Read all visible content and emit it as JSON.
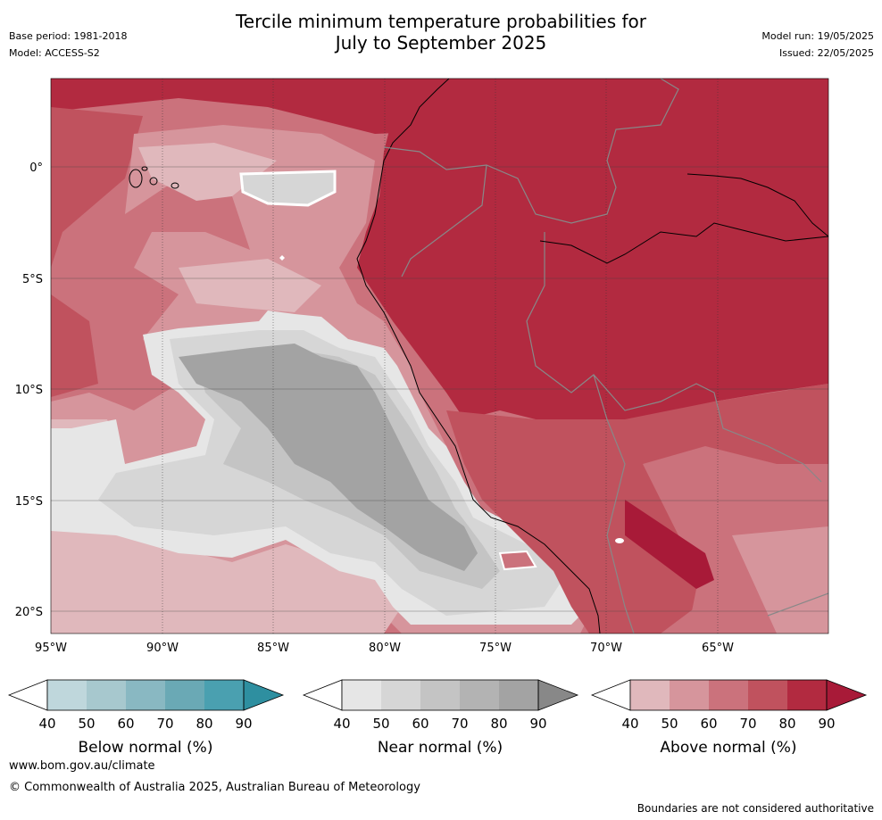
{
  "header": {
    "title_line1": "Tercile minimum temperature probabilities for",
    "title_line2": "July to September 2025",
    "base_period": "Base period: 1981-2018",
    "model": "Model: ACCESS-S2",
    "model_run": "Model run: 19/05/2025",
    "issued": "Issued: 22/05/2025"
  },
  "map": {
    "lat_ticks": [
      "0°",
      "5°S",
      "10°S",
      "15°S",
      "20°S"
    ],
    "lon_ticks": [
      "95°W",
      "90°W",
      "85°W",
      "80°W",
      "75°W",
      "70°W",
      "65°W"
    ],
    "lat_range": [
      -21,
      4
    ],
    "lon_range": [
      -95,
      -60
    ],
    "grid": true,
    "colors": {
      "above": [
        "#e0b8bc",
        "#d6959c",
        "#cb727c",
        "#c0525e",
        "#b22a40",
        "#a81a38"
      ],
      "near": [
        "#e6e6e6",
        "#d6d6d6",
        "#c4c4c4",
        "#b3b3b3",
        "#a3a3a3",
        "#888888"
      ],
      "below": [
        "#bfd7dc",
        "#a7c8ce",
        "#89b8c2",
        "#6aa9b5",
        "#4aa0b0",
        "#2e8fa0"
      ]
    }
  },
  "colorbars": [
    {
      "label": "Below normal (%)",
      "ticks": [
        "40",
        "50",
        "60",
        "70",
        "80",
        "90"
      ]
    },
    {
      "label": "Near normal (%)",
      "ticks": [
        "40",
        "50",
        "60",
        "70",
        "80",
        "90"
      ]
    },
    {
      "label": "Above normal (%)",
      "ticks": [
        "40",
        "50",
        "60",
        "70",
        "80",
        "90"
      ]
    }
  ],
  "footer": {
    "url": "www.bom.gov.au/climate",
    "copyright": "© Commonwealth of Australia 2025, Australian Bureau of Meteorology",
    "note": "Boundaries are not considered authoritative"
  }
}
